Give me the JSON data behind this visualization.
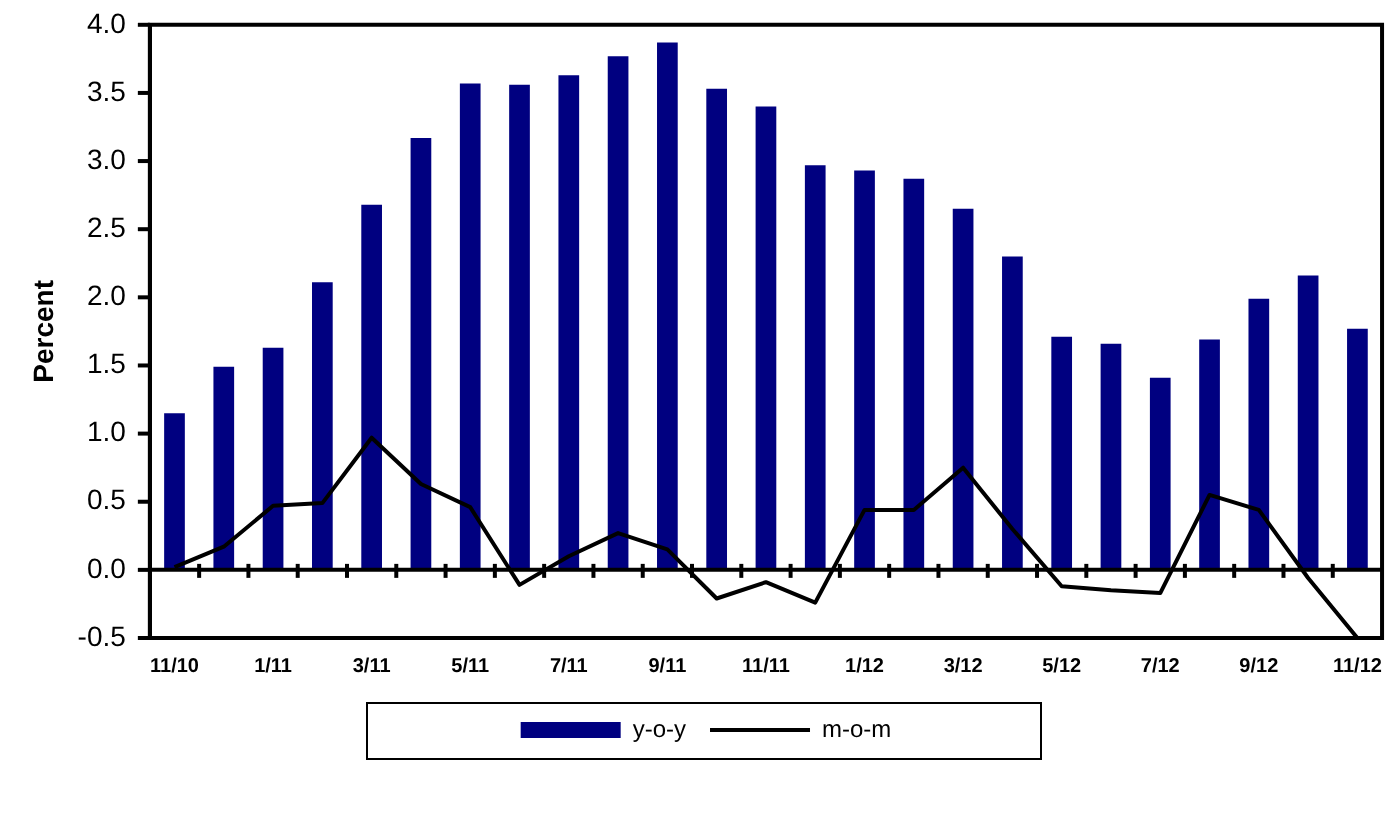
{
  "chart_data": {
    "type": "bar",
    "ylabel": "Percent",
    "categories": [
      "11/10",
      null,
      "1/11",
      null,
      "3/11",
      null,
      "5/11",
      null,
      "7/11",
      null,
      "9/11",
      null,
      "11/11",
      null,
      "1/12",
      null,
      "3/12",
      null,
      "5/12",
      null,
      "7/12",
      null,
      "9/12",
      null,
      "11/12"
    ],
    "series": [
      {
        "name": "y-o-y",
        "color": "#000080",
        "values": [
          1.15,
          1.49,
          1.63,
          2.11,
          2.68,
          3.17,
          3.57,
          3.56,
          3.63,
          3.77,
          3.87,
          3.53,
          3.4,
          2.97,
          2.93,
          2.87,
          2.65,
          2.3,
          1.71,
          1.66,
          1.41,
          1.69,
          1.99,
          2.16,
          1.77
        ]
      },
      {
        "name": "m-o-m",
        "type": "line",
        "color": "#000000",
        "values": [
          0.02,
          0.17,
          0.47,
          0.49,
          0.97,
          0.63,
          0.46,
          -0.11,
          0.1,
          0.27,
          0.15,
          -0.21,
          -0.09,
          -0.24,
          0.44,
          0.44,
          0.75,
          0.3,
          -0.12,
          -0.15,
          -0.17,
          0.55,
          0.44,
          -0.06,
          -0.5
        ]
      }
    ],
    "ylim": [
      -0.5,
      4
    ],
    "yticks": [
      {
        "value": -0.5,
        "label": "-0.5"
      },
      {
        "value": 0,
        "label": "0.0"
      },
      {
        "value": 0.5,
        "label": "0.5"
      },
      {
        "value": 1,
        "label": "1.0"
      },
      {
        "value": 1.5,
        "label": "1.5"
      },
      {
        "value": 2,
        "label": "2.0"
      },
      {
        "value": 2.5,
        "label": "2.5"
      },
      {
        "value": 3,
        "label": "3.0"
      },
      {
        "value": 3.5,
        "label": "3.5"
      },
      {
        "value": 4,
        "label": "4.0"
      }
    ],
    "ref_lines": [
      {
        "axis": "y",
        "value": 0,
        "color": "#000000",
        "line_style": "solid"
      }
    ],
    "grid": false,
    "legend": "bottom",
    "marker": "none",
    "line_style": "solid"
  }
}
